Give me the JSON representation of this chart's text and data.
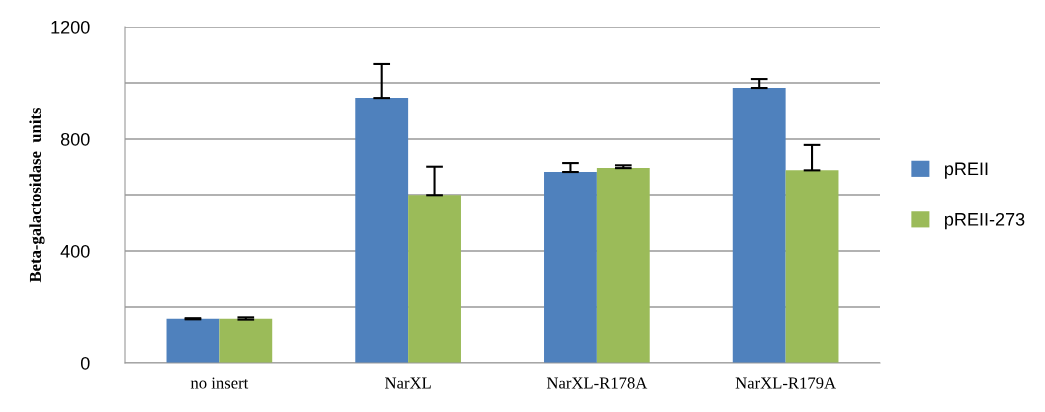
{
  "chart_data": {
    "type": "bar",
    "ylabel": "Beta-galactosidase  units",
    "categories": [
      "no insert",
      "NarXL",
      "NarXL-R178A",
      "NarXL-R179A"
    ],
    "series": [
      {
        "name": "pREII",
        "color": "#4f81bd",
        "values": [
          158,
          946,
          682,
          982
        ],
        "errors": [
          [
            156,
            160
          ],
          [
            946,
            1068
          ],
          [
            682,
            714
          ],
          [
            982,
            1014
          ]
        ]
      },
      {
        "name": "pREII-273",
        "color": "#9bbb59",
        "values": [
          158,
          599,
          696,
          688
        ],
        "errors": [
          [
            155,
            163
          ],
          [
            599,
            701
          ],
          [
            696,
            706
          ],
          [
            688,
            779
          ]
        ]
      }
    ],
    "ylim": [
      0,
      1200
    ],
    "yticks": [
      0,
      {
        "value": 200,
        "label": null
      },
      400,
      {
        "value": 600,
        "label": null
      },
      800,
      {
        "value": 1000,
        "label": null
      },
      1200
    ],
    "grid": "y",
    "legend": "right"
  }
}
